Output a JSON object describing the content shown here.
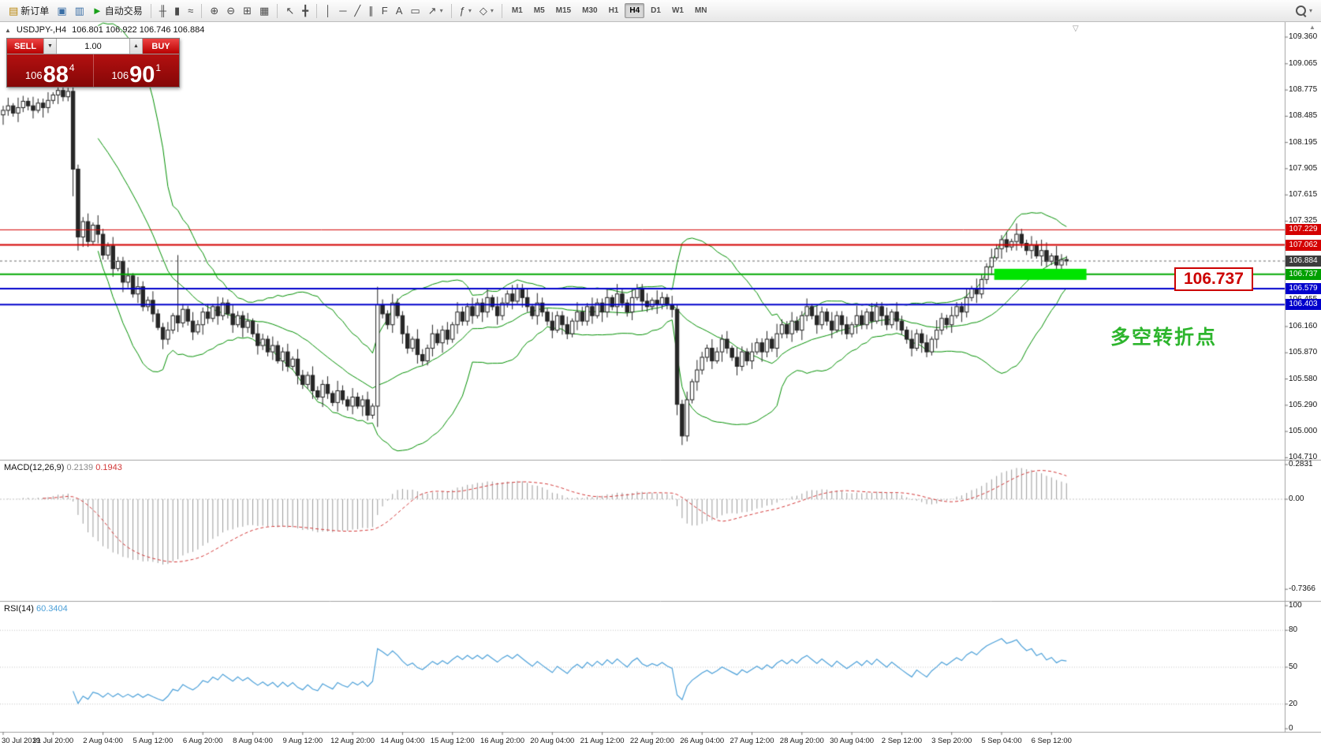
{
  "icons": {
    "panel_toggle": "▲",
    "spinner_down": "▼",
    "spinner_up": "▲",
    "caret": "▾",
    "shift_marker": "▽",
    "axis_scroll": "▲"
  },
  "colors": {
    "bollinger": "#008f00",
    "candle_up": "#ffffff",
    "candle_down": "#262626",
    "candle_stroke": "#222222",
    "macd_hist": "#9a9a9a",
    "macd_signal": "#d23737",
    "rsi_line": "#4a9fd8",
    "hline_red": "#d40000",
    "hline_green": "#00a800",
    "hline_blue": "#0000cc",
    "highlight": "#00e400",
    "bid_line": "#6a6a6a",
    "axis_tick": "#777777",
    "separator": "#a0a0a0",
    "level_dotted": "#c4c4c4"
  },
  "toolbar": {
    "groups": [
      {
        "name": "orders",
        "items": [
          {
            "name": "new-order-button",
            "glyph": "▤",
            "glyph_color": "#b8860b",
            "label": "新订单"
          },
          {
            "name": "chart-window-button",
            "glyph": "▣",
            "glyph_color": "#3a6ea5"
          },
          {
            "name": "profiles-button",
            "glyph": "▥",
            "glyph_color": "#3a6ea5"
          },
          {
            "name": "autotrading-button",
            "glyph": "►",
            "glyph_color": "#18a018",
            "label": "自动交易"
          }
        ]
      },
      {
        "name": "chart-types",
        "items": [
          {
            "name": "bar-chart-button",
            "glyph": "╫"
          },
          {
            "name": "candlestick-chart-button",
            "glyph": "▮"
          },
          {
            "name": "line-chart-button",
            "glyph": "≈"
          }
        ]
      },
      {
        "name": "zoom",
        "items": [
          {
            "name": "zoom-in-button",
            "glyph": "⊕"
          },
          {
            "name": "zoom-out-button",
            "glyph": "⊖"
          },
          {
            "name": "tile-windows-button",
            "glyph": "⊞"
          },
          {
            "name": "arrange-windows-button",
            "glyph": "▦"
          }
        ]
      },
      {
        "name": "cursor-tools",
        "items": [
          {
            "name": "cursor-button",
            "glyph": "↖"
          },
          {
            "name": "crosshair-button",
            "glyph": "╋"
          }
        ]
      },
      {
        "name": "draw-tools",
        "items": [
          {
            "name": "vertical-line-button",
            "glyph": "│"
          },
          {
            "name": "horizontal-line-button",
            "glyph": "─"
          },
          {
            "name": "trendline-button",
            "glyph": "╱"
          },
          {
            "name": "channel-button",
            "glyph": "∥"
          },
          {
            "name": "fibonacci-button",
            "glyph": "F"
          },
          {
            "name": "text-button",
            "glyph": "A"
          },
          {
            "name": "label-button",
            "glyph": "▭"
          },
          {
            "name": "arrows-button",
            "glyph": "↗",
            "caret": true
          }
        ]
      },
      {
        "name": "indicators",
        "items": [
          {
            "name": "indicators-button",
            "glyph": "ƒ",
            "caret": true
          },
          {
            "name": "objects-button",
            "glyph": "◇",
            "caret": true
          }
        ]
      }
    ],
    "timeframes": [
      "M1",
      "M5",
      "M15",
      "M30",
      "H1",
      "H4",
      "D1",
      "W1",
      "MN"
    ],
    "active_timeframe": "H4"
  },
  "chart": {
    "symbol_info": {
      "symbol": "USDJPY-,H4",
      "ohlc": "106.801 106.922 106.746 106.884"
    },
    "trade_panel": {
      "sell_label": "SELL",
      "buy_label": "BUY",
      "volume": "1.00",
      "bid": {
        "prefix": "106",
        "big": "88",
        "sup": "4"
      },
      "ask": {
        "prefix": "106",
        "big": "90",
        "sup": "1"
      }
    },
    "callout": {
      "text": "106.737"
    },
    "annotation": {
      "text": "多空转折点"
    },
    "axis_ticks": [
      "109.360",
      "109.065",
      "108.775",
      "108.485",
      "108.195",
      "107.905",
      "107.615",
      "107.325",
      "107.035",
      "106.745",
      "106.455",
      "106.160",
      "105.870",
      "105.580",
      "105.290",
      "105.000",
      "104.710"
    ],
    "tags": [
      {
        "label": "107.229",
        "price": 107.229,
        "color": "#d40000"
      },
      {
        "label": "107.062",
        "price": 107.062,
        "color": "#d40000"
      },
      {
        "label": "106.884",
        "price": 106.884,
        "color": "#3c3c3c"
      },
      {
        "label": "106.737",
        "price": 106.737,
        "color": "#00a000"
      },
      {
        "label": "106.579",
        "price": 106.579,
        "color": "#0000cc"
      },
      {
        "label": "106.403",
        "price": 106.403,
        "color": "#0000cc"
      }
    ],
    "hlines": [
      {
        "price": 107.229,
        "color": "#d40000",
        "width": 1
      },
      {
        "price": 107.062,
        "color": "#d40000",
        "width": 2
      },
      {
        "price": 106.737,
        "color": "#00a800",
        "width": 2
      },
      {
        "price": 106.579,
        "color": "#0000cc",
        "width": 2
      },
      {
        "price": 106.403,
        "color": "#0000cc",
        "width": 2
      }
    ],
    "bid_line": {
      "price": 106.884
    },
    "highlight": {
      "price": 106.737,
      "from_index": 199,
      "to_index": 217,
      "height": 14
    }
  },
  "macd_panel": {
    "name": "MACD(12,26,9)",
    "value_main": "0.2139",
    "value_signal": "0.1943",
    "axis": [
      {
        "label": "0.2831",
        "value": 0.2831
      },
      {
        "label": "0.00",
        "value": 0
      },
      {
        "label": "-0.7366",
        "value": -0.7366
      }
    ]
  },
  "rsi_panel": {
    "name": "RSI(14)",
    "value": "60.3404",
    "axis": [
      {
        "label": "100",
        "value": 100
      },
      {
        "label": "80",
        "value": 80
      },
      {
        "label": "50",
        "value": 50
      },
      {
        "label": "20",
        "value": 20
      },
      {
        "label": "0",
        "value": 0
      }
    ],
    "levels": [
      80,
      50,
      20
    ]
  },
  "time_axis": [
    "30 Jul 2019",
    "31 Jul 20:00",
    "2 Aug 04:00",
    "5 Aug 12:00",
    "6 Aug 20:00",
    "8 Aug 04:00",
    "9 Aug 12:00",
    "12 Aug 20:00",
    "14 Aug 04:00",
    "15 Aug 12:00",
    "16 Aug 20:00",
    "20 Aug 04:00",
    "21 Aug 12:00",
    "22 Aug 20:00",
    "26 Aug 04:00",
    "27 Aug 12:00",
    "28 Aug 20:00",
    "30 Aug 04:00",
    "2 Sep 12:00",
    "3 Sep 20:00",
    "5 Sep 04:00",
    "6 Sep 12:00"
  ],
  "chart_data": {
    "type": "candlestick",
    "symbol": "USDJPY",
    "period": "H4",
    "ylim": [
      104.71,
      109.36
    ],
    "first_open": 108.5,
    "closes": [
      108.55,
      108.6,
      108.52,
      108.58,
      108.65,
      108.6,
      108.55,
      108.63,
      108.58,
      108.66,
      108.72,
      108.77,
      108.7,
      108.76,
      107.9,
      107.15,
      107.32,
      107.1,
      107.28,
      107.18,
      106.95,
      107.05,
      106.8,
      106.88,
      106.65,
      106.72,
      106.52,
      106.6,
      106.38,
      106.45,
      106.3,
      106.15,
      106.02,
      106.12,
      106.28,
      106.2,
      106.35,
      106.22,
      106.1,
      106.18,
      106.32,
      106.25,
      106.38,
      106.28,
      106.42,
      106.3,
      106.18,
      106.28,
      106.15,
      106.22,
      106.08,
      105.95,
      106.02,
      105.88,
      105.95,
      105.78,
      105.88,
      105.72,
      105.8,
      105.62,
      105.52,
      105.62,
      105.45,
      105.38,
      105.52,
      105.42,
      105.32,
      105.45,
      105.35,
      105.28,
      105.38,
      105.28,
      105.35,
      105.18,
      105.28,
      106.4,
      106.3,
      106.18,
      106.42,
      106.28,
      106.08,
      105.92,
      106.02,
      105.85,
      105.78,
      105.92,
      106.08,
      105.98,
      106.12,
      106.02,
      106.18,
      106.32,
      106.22,
      106.38,
      106.28,
      106.42,
      106.32,
      106.48,
      106.38,
      106.28,
      106.42,
      106.52,
      106.44,
      106.58,
      106.48,
      106.38,
      106.28,
      106.42,
      106.32,
      106.22,
      106.12,
      106.28,
      106.18,
      106.08,
      106.22,
      106.32,
      106.22,
      106.38,
      106.28,
      106.42,
      106.32,
      106.48,
      106.38,
      106.52,
      106.42,
      106.32,
      106.48,
      106.58,
      106.44,
      106.38,
      106.45,
      106.4,
      106.48,
      106.4,
      106.35,
      105.3,
      104.95,
      105.35,
      105.55,
      105.68,
      105.82,
      105.92,
      105.78,
      105.88,
      106.02,
      105.92,
      105.82,
      105.72,
      105.88,
      105.78,
      105.88,
      105.98,
      105.88,
      106.02,
      105.92,
      106.08,
      106.18,
      106.08,
      106.22,
      106.12,
      106.28,
      106.38,
      106.28,
      106.18,
      106.32,
      106.22,
      106.12,
      106.28,
      106.18,
      106.08,
      106.18,
      106.28,
      106.18,
      106.32,
      106.22,
      106.38,
      106.28,
      106.18,
      106.32,
      106.22,
      106.12,
      106.02,
      105.92,
      106.08,
      105.98,
      105.88,
      106.02,
      106.12,
      106.25,
      106.18,
      106.28,
      106.38,
      106.32,
      106.48,
      106.58,
      106.52,
      106.68,
      106.82,
      106.92,
      107.02,
      107.12,
      107.04,
      107.1,
      107.18,
      107.08,
      107.0,
      107.06,
      106.94,
      107.0,
      106.88,
      106.94,
      106.84,
      106.9,
      106.884
    ],
    "wick_cycle": [
      0.05,
      0.09,
      0.03,
      0.11,
      0.06,
      0.04,
      0.1,
      0.05
    ],
    "overrides": {
      "13": {
        "h": 108.8
      },
      "14": {
        "l": 107.6
      },
      "15": {
        "l": 107.0
      },
      "35": {
        "h": 106.95
      },
      "75": {
        "h": 106.6,
        "l": 105.05
      },
      "135": {
        "l": 105.18
      },
      "136": {
        "l": 104.85
      },
      "203": {
        "h": 107.3
      },
      "208": {
        "h": 107.12
      }
    },
    "indicators": [
      {
        "type": "bollinger",
        "period": 20,
        "deviation": 2
      },
      {
        "type": "macd",
        "fast": 12,
        "slow": 26,
        "signal": 9
      },
      {
        "type": "rsi",
        "period": 14
      }
    ]
  }
}
